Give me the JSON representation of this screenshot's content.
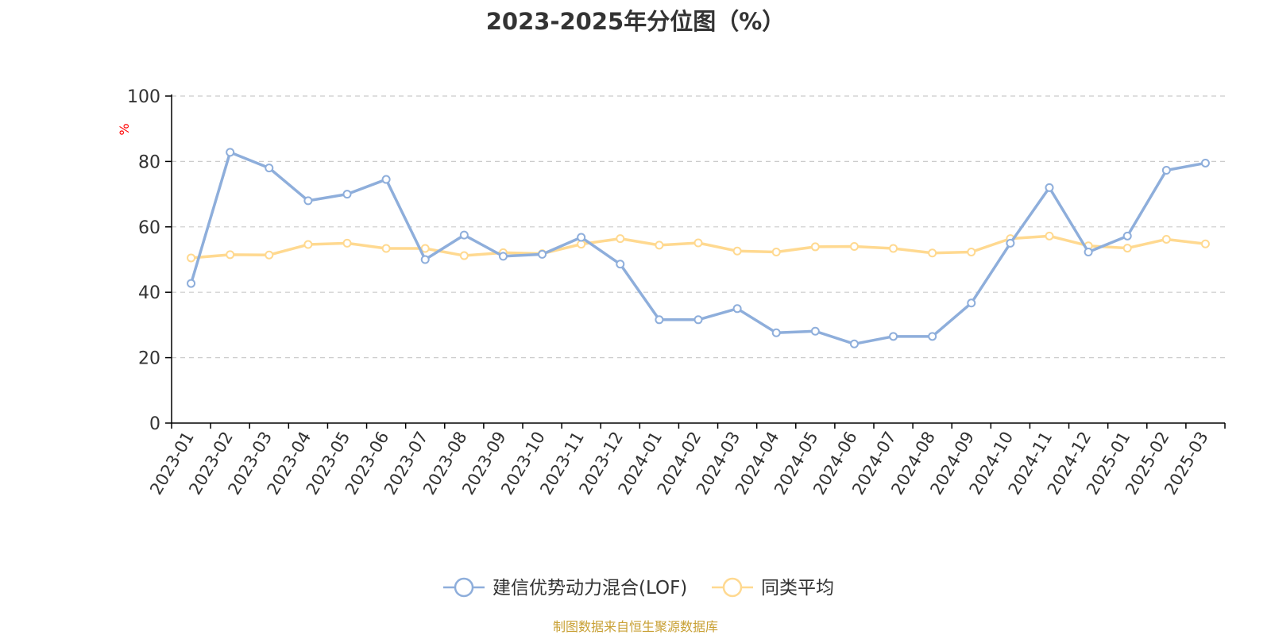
{
  "colors": {
    "series1": "#8eaedb",
    "series2": "#ffd990",
    "axis": "#000000",
    "grid": "#cccccc",
    "title": "#333333",
    "ylabel": "#ff0000",
    "source": "#c8a034"
  },
  "chart_data": {
    "type": "line",
    "title": "2023-2025年分位图（%）",
    "ylabel": "%",
    "xlabel": "",
    "ylim": [
      0,
      100
    ],
    "yticks": [
      0,
      20,
      40,
      60,
      80,
      100
    ],
    "grid": true,
    "legend_position": "bottom-center",
    "categories": [
      "2023-01",
      "2023-02",
      "2023-03",
      "2023-04",
      "2023-05",
      "2023-06",
      "2023-07",
      "2023-08",
      "2023-09",
      "2023-10",
      "2023-11",
      "2023-12",
      "2024-01",
      "2024-02",
      "2024-03",
      "2024-04",
      "2024-05",
      "2024-06",
      "2024-07",
      "2024-08",
      "2024-09",
      "2024-10",
      "2024-11",
      "2024-12",
      "2025-01",
      "2025-02",
      "2025-03"
    ],
    "series": [
      {
        "name": "建信优势动力混合(LOF)",
        "values": [
          42.7,
          82.8,
          78.0,
          68.0,
          70.0,
          74.5,
          50.0,
          57.5,
          51.0,
          51.6,
          56.8,
          48.6,
          31.6,
          31.6,
          35.0,
          27.6,
          28.1,
          24.2,
          26.5,
          26.5,
          36.7,
          55.0,
          72.0,
          52.3,
          57.2,
          77.3,
          79.5
        ]
      },
      {
        "name": "同类平均",
        "values": [
          50.5,
          51.5,
          51.4,
          54.6,
          55.0,
          53.4,
          53.4,
          51.2,
          52.1,
          51.8,
          54.7,
          56.4,
          54.4,
          55.1,
          52.6,
          52.3,
          53.9,
          54.0,
          53.4,
          52.0,
          52.3,
          56.4,
          57.2,
          54.2,
          53.5,
          56.2,
          54.8
        ]
      }
    ]
  },
  "source_note": "制图数据来自恒生聚源数据库"
}
